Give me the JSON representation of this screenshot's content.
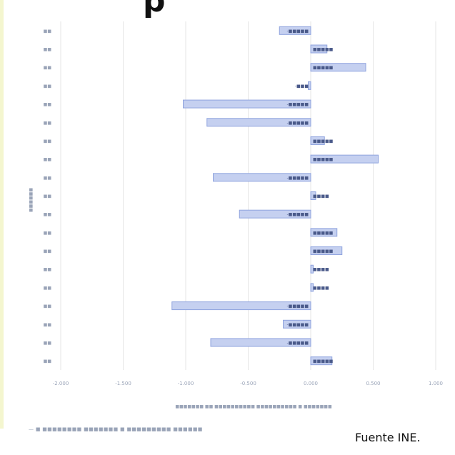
{
  "title": "p",
  "source": "Fuente INE.",
  "footer_caption": "— ■ ■■■■■■■■ ■■■■■■■ ■ ■■■■■■■■■ ■■■■■■",
  "colors": {
    "bar_fill": "#c5d0f0",
    "bar_edge": "#8fa3de",
    "grid": "#e6e6e6",
    "stripe": "#f4f6cf"
  },
  "chart_data": {
    "type": "bar",
    "orientation": "horizontal",
    "title": "",
    "xlabel": "■■■■■■■ ■■ ■■■■■■■■■■ ■■■■■■■■■■ ■ ■■■■■■■",
    "ylabel": "■■■■■■",
    "xlim": [
      -0.02,
      0.01
    ],
    "xticks": [
      "-2.000",
      "-1.500",
      "-1.000",
      "-0.500",
      "0.000",
      "0.500",
      "1.000"
    ],
    "tick_values": [
      -0.02,
      -0.015,
      -0.01,
      -0.005,
      0.0,
      0.005,
      0.01
    ],
    "grid": true,
    "categories": [
      "■■",
      "■■",
      "■■",
      "■■",
      "■■",
      "■■",
      "■■",
      "■■",
      "■■",
      "■■",
      "■■",
      "■■",
      "■■",
      "■■",
      "■■",
      "■■",
      "■■",
      "■■",
      "■■"
    ],
    "values": [
      -0.0025,
      0.0013,
      0.0044,
      -0.0002,
      -0.0102,
      -0.0083,
      0.0011,
      0.0054,
      -0.0078,
      0.0004,
      -0.0057,
      0.0021,
      0.0025,
      0.0002,
      0.0002,
      -0.0111,
      -0.0022,
      -0.008,
      0.0017
    ],
    "data_labels": [
      "-■■■■■",
      "■■■■■",
      "■■■■■",
      "-■■■",
      "-■■■■■",
      "-■■■■■",
      "■■■■■",
      "■■■■■",
      "-■■■■■",
      "■■■■",
      "-■■■■■",
      "■■■■■",
      "■■■■■",
      "■■■■",
      "■■■■",
      "-■■■■■",
      "-■■■■■",
      "-■■■■■",
      "■■■■■"
    ]
  }
}
